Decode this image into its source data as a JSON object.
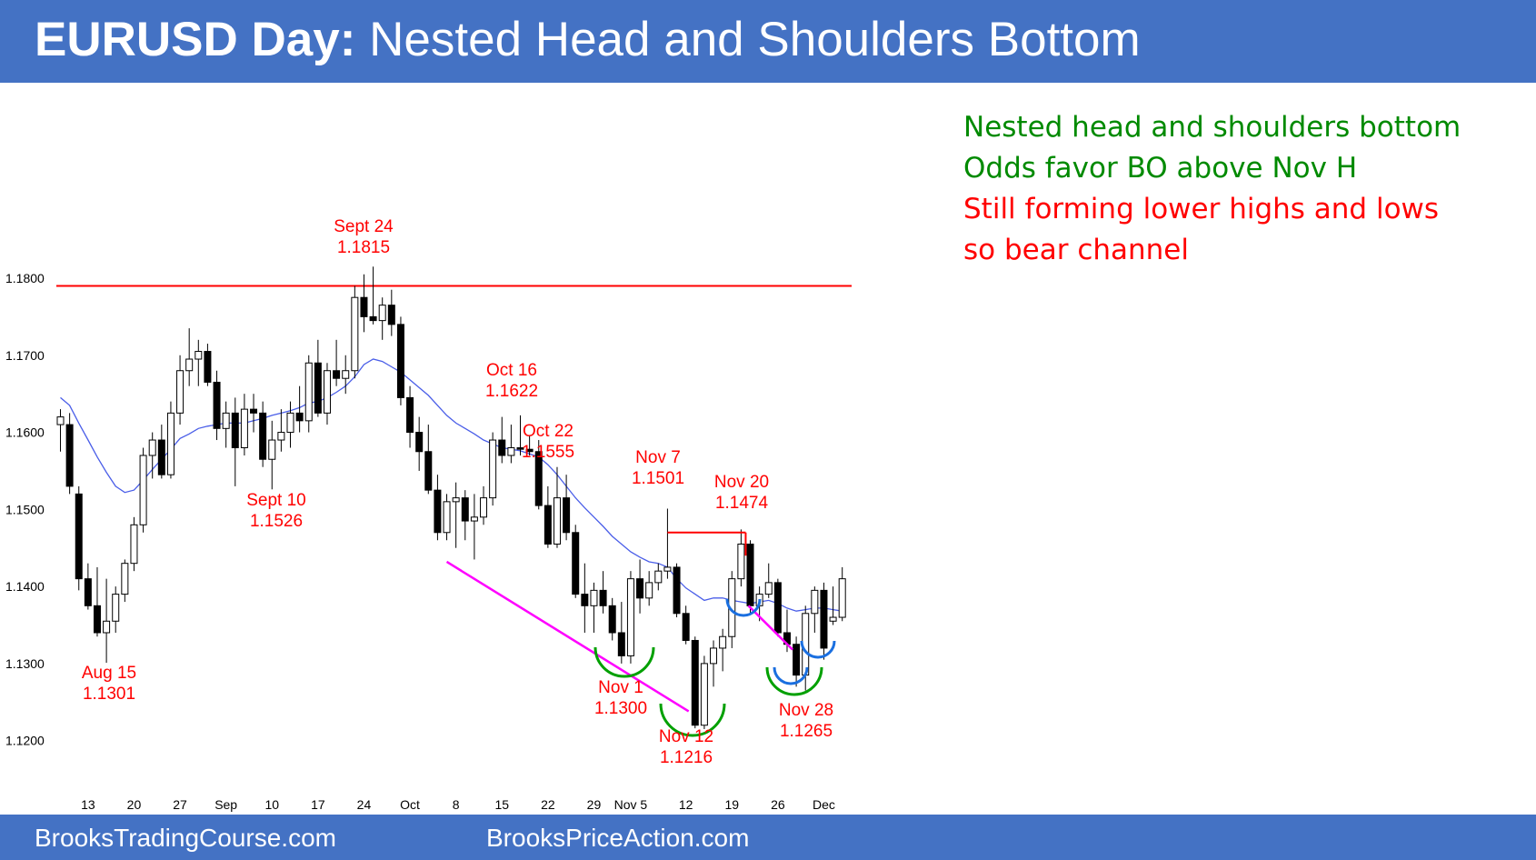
{
  "header": {
    "title_bold": "EURUSD Day:",
    "title_rest": "Nested Head and Shoulders Bottom"
  },
  "footer": {
    "left": "BrooksTradingCourse.com",
    "right": "BrooksPriceAction.com"
  },
  "notes": [
    {
      "text": "Nested head and shoulders bottom",
      "color": "#008a00"
    },
    {
      "text": "Odds favor BO above Nov H",
      "color": "#008a00"
    },
    {
      "text": "Still forming lower highs and lows",
      "color": "#ff0000"
    },
    {
      "text": "so bear channel",
      "color": "#ff0000"
    }
  ],
  "colors": {
    "header_bg": "#4472c4",
    "resistance_line": "#ff0000",
    "annotation_text": "#ff0000",
    "moving_average": "#4a5ee8",
    "trendline": "#ff00ff",
    "hs_outer": "#00a000",
    "hs_inner": "#1a6fe0",
    "bull_candle": "#ffffff",
    "bear_candle": "#000000"
  },
  "chart_data": {
    "type": "candlestick",
    "timeframe": "Day",
    "symbol": "EURUSD",
    "y_ticks": [
      "1.1800",
      "1.1700",
      "1.1600",
      "1.1500",
      "1.1400",
      "1.1300",
      "1.1200"
    ],
    "y_tick_values": [
      1.18,
      1.17,
      1.16,
      1.15,
      1.14,
      1.13,
      1.12
    ],
    "ylim": [
      1.1155,
      1.1905
    ],
    "x_ticks": [
      {
        "label": "13",
        "bar": 3
      },
      {
        "label": "20",
        "bar": 8
      },
      {
        "label": "27",
        "bar": 13
      },
      {
        "label": "Sep",
        "bar": 18
      },
      {
        "label": "10",
        "bar": 23
      },
      {
        "label": "17",
        "bar": 28
      },
      {
        "label": "24",
        "bar": 33
      },
      {
        "label": "Oct",
        "bar": 38
      },
      {
        "label": "8",
        "bar": 43
      },
      {
        "label": "15",
        "bar": 48
      },
      {
        "label": "22",
        "bar": 53
      },
      {
        "label": "29",
        "bar": 58
      },
      {
        "label": "Nov 5",
        "bar": 62
      },
      {
        "label": "12",
        "bar": 68
      },
      {
        "label": "19",
        "bar": 73
      },
      {
        "label": "26",
        "bar": 78
      },
      {
        "label": "Dec",
        "bar": 83
      }
    ],
    "candles": [
      [
        1.161,
        1.163,
        1.1575,
        1.162
      ],
      [
        1.161,
        1.1625,
        1.152,
        1.153
      ],
      [
        1.152,
        1.153,
        1.1395,
        1.141
      ],
      [
        1.141,
        1.143,
        1.137,
        1.1375
      ],
      [
        1.1375,
        1.1425,
        1.1335,
        1.134
      ],
      [
        1.134,
        1.141,
        1.1301,
        1.1355
      ],
      [
        1.1355,
        1.14,
        1.134,
        1.139
      ],
      [
        1.139,
        1.1435,
        1.138,
        1.143
      ],
      [
        1.143,
        1.149,
        1.142,
        1.148
      ],
      [
        1.148,
        1.158,
        1.147,
        1.157
      ],
      [
        1.157,
        1.16,
        1.154,
        1.159
      ],
      [
        1.159,
        1.161,
        1.154,
        1.1545
      ],
      [
        1.1545,
        1.164,
        1.154,
        1.1625
      ],
      [
        1.1625,
        1.17,
        1.161,
        1.168
      ],
      [
        1.168,
        1.1735,
        1.166,
        1.1695
      ],
      [
        1.1695,
        1.172,
        1.166,
        1.1705
      ],
      [
        1.1705,
        1.1715,
        1.166,
        1.1665
      ],
      [
        1.1665,
        1.168,
        1.159,
        1.1605
      ],
      [
        1.1605,
        1.164,
        1.158,
        1.1625
      ],
      [
        1.1625,
        1.1645,
        1.153,
        1.158
      ],
      [
        1.158,
        1.165,
        1.157,
        1.163
      ],
      [
        1.163,
        1.165,
        1.16,
        1.1625
      ],
      [
        1.1625,
        1.164,
        1.1555,
        1.1565
      ],
      [
        1.1565,
        1.1615,
        1.1526,
        1.159
      ],
      [
        1.159,
        1.163,
        1.1575,
        1.16
      ],
      [
        1.16,
        1.164,
        1.158,
        1.1625
      ],
      [
        1.1625,
        1.166,
        1.16,
        1.1615
      ],
      [
        1.1615,
        1.17,
        1.16,
        1.169
      ],
      [
        1.169,
        1.172,
        1.162,
        1.1625
      ],
      [
        1.1625,
        1.169,
        1.161,
        1.168
      ],
      [
        1.168,
        1.172,
        1.166,
        1.167
      ],
      [
        1.167,
        1.17,
        1.165,
        1.168
      ],
      [
        1.168,
        1.179,
        1.167,
        1.1775
      ],
      [
        1.1775,
        1.1805,
        1.173,
        1.175
      ],
      [
        1.175,
        1.1815,
        1.174,
        1.1745
      ],
      [
        1.1745,
        1.1775,
        1.172,
        1.1765
      ],
      [
        1.1765,
        1.1785,
        1.1725,
        1.174
      ],
      [
        1.174,
        1.175,
        1.1635,
        1.1645
      ],
      [
        1.1645,
        1.166,
        1.158,
        1.16
      ],
      [
        1.16,
        1.162,
        1.155,
        1.1575
      ],
      [
        1.1575,
        1.161,
        1.152,
        1.1525
      ],
      [
        1.1525,
        1.1545,
        1.146,
        1.147
      ],
      [
        1.147,
        1.152,
        1.146,
        1.151
      ],
      [
        1.151,
        1.1535,
        1.145,
        1.1515
      ],
      [
        1.1515,
        1.1525,
        1.146,
        1.1485
      ],
      [
        1.1485,
        1.152,
        1.1435,
        1.149
      ],
      [
        1.149,
        1.153,
        1.148,
        1.1515
      ],
      [
        1.1515,
        1.16,
        1.1505,
        1.159
      ],
      [
        1.159,
        1.162,
        1.156,
        1.157
      ],
      [
        1.157,
        1.161,
        1.156,
        1.158
      ],
      [
        1.158,
        1.1622,
        1.157,
        1.1578
      ],
      [
        1.1578,
        1.1595,
        1.157,
        1.1575
      ],
      [
        1.1575,
        1.159,
        1.15,
        1.1505
      ],
      [
        1.1505,
        1.153,
        1.145,
        1.1455
      ],
      [
        1.1455,
        1.1555,
        1.145,
        1.1515
      ],
      [
        1.1515,
        1.1545,
        1.146,
        1.147
      ],
      [
        1.147,
        1.148,
        1.1385,
        1.139
      ],
      [
        1.139,
        1.143,
        1.134,
        1.1375
      ],
      [
        1.1375,
        1.1405,
        1.134,
        1.1395
      ],
      [
        1.1395,
        1.142,
        1.1365,
        1.1375
      ],
      [
        1.1375,
        1.1385,
        1.133,
        1.134
      ],
      [
        1.134,
        1.138,
        1.13,
        1.131
      ],
      [
        1.131,
        1.142,
        1.13,
        1.141
      ],
      [
        1.141,
        1.1435,
        1.1365,
        1.1385
      ],
      [
        1.1385,
        1.142,
        1.1375,
        1.1405
      ],
      [
        1.1405,
        1.143,
        1.1395,
        1.142
      ],
      [
        1.142,
        1.1501,
        1.141,
        1.1425
      ],
      [
        1.1425,
        1.143,
        1.136,
        1.1365
      ],
      [
        1.1365,
        1.1375,
        1.1325,
        1.133
      ],
      [
        1.133,
        1.1335,
        1.1216,
        1.122
      ],
      [
        1.122,
        1.131,
        1.1215,
        1.13
      ],
      [
        1.13,
        1.133,
        1.127,
        1.132
      ],
      [
        1.132,
        1.1345,
        1.129,
        1.1335
      ],
      [
        1.1335,
        1.142,
        1.132,
        1.141
      ],
      [
        1.141,
        1.1474,
        1.14,
        1.1455
      ],
      [
        1.1455,
        1.146,
        1.1365,
        1.1375
      ],
      [
        1.1375,
        1.14,
        1.1355,
        1.139
      ],
      [
        1.139,
        1.143,
        1.1385,
        1.1405
      ],
      [
        1.1405,
        1.141,
        1.1335,
        1.134
      ],
      [
        1.134,
        1.137,
        1.1315,
        1.1325
      ],
      [
        1.1325,
        1.1335,
        1.127,
        1.1285
      ],
      [
        1.1285,
        1.1375,
        1.1265,
        1.1365
      ],
      [
        1.1365,
        1.14,
        1.134,
        1.1395
      ],
      [
        1.1395,
        1.1405,
        1.1305,
        1.132
      ],
      [
        1.1355,
        1.14,
        1.135,
        1.136
      ],
      [
        1.136,
        1.1425,
        1.1355,
        1.141
      ]
    ],
    "moving_average_20": [
      1.1645,
      1.1635,
      1.1612,
      1.159,
      1.1568,
      1.1548,
      1.153,
      1.1522,
      1.1525,
      1.1538,
      1.1552,
      1.1565,
      1.1578,
      1.1592,
      1.1598,
      1.1605,
      1.1608,
      1.161,
      1.1612,
      1.1612,
      1.1612,
      1.1615,
      1.1618,
      1.1622,
      1.1625,
      1.1628,
      1.1632,
      1.1638,
      1.164,
      1.1645,
      1.1652,
      1.166,
      1.1672,
      1.1688,
      1.1695,
      1.1692,
      1.1685,
      1.1678,
      1.1668,
      1.1658,
      1.1648,
      1.1635,
      1.1622,
      1.1612,
      1.1605,
      1.1598,
      1.159,
      1.1585,
      1.158,
      1.1578,
      1.1576,
      1.1572,
      1.1568,
      1.1558,
      1.1545,
      1.153,
      1.1515,
      1.1502,
      1.149,
      1.1478,
      1.1465,
      1.1455,
      1.1445,
      1.1438,
      1.1432,
      1.143,
      1.1425,
      1.141,
      1.1398,
      1.139,
      1.1382,
      1.1385,
      1.1385,
      1.1382,
      1.138,
      1.1378,
      1.138,
      1.1382,
      1.1378,
      1.1372,
      1.1368,
      1.137,
      1.1372,
      1.1372,
      1.137,
      1.1368
    ],
    "resistance_level": 1.179,
    "annotations": [
      {
        "date": "Aug 15",
        "price": "1.1301",
        "bar": 5
      },
      {
        "date": "Sept 10",
        "price": "1.1526",
        "bar": 23
      },
      {
        "date": "Sept 24",
        "price": "1.1815",
        "bar": 34
      },
      {
        "date": "Oct 16",
        "price": "1.1622",
        "bar": 50
      },
      {
        "date": "Oct 22",
        "price": "1.1555",
        "bar": 54
      },
      {
        "date": "Nov 7",
        "price": "1.1501",
        "bar": 66
      },
      {
        "date": "Nov 1",
        "price": "1.1300",
        "bar": 61
      },
      {
        "date": "Nov 12",
        "price": "1.1216",
        "bar": 69
      },
      {
        "date": "Nov 20",
        "price": "1.1474",
        "bar": 74
      },
      {
        "date": "Nov 28",
        "price": "1.1265",
        "bar": 81
      }
    ]
  }
}
